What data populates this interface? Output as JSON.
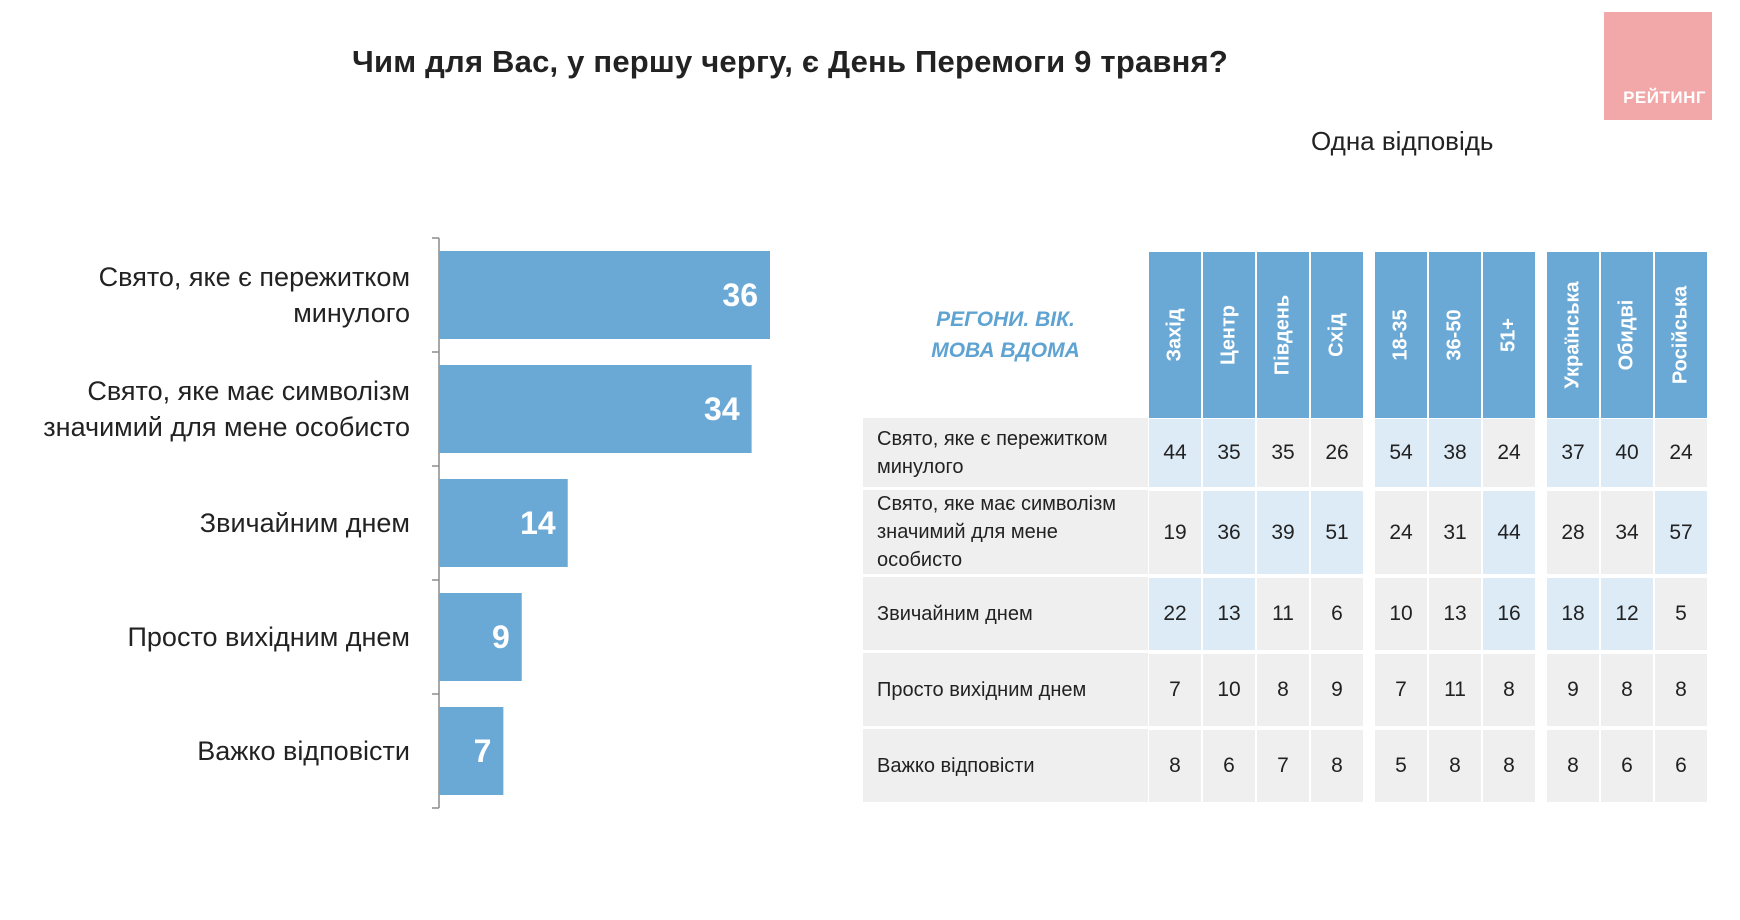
{
  "title": "Чим для Вас, у першу чергу, є День Перемоги 9 травня?",
  "subtitle": "Одна відповідь",
  "logo_text": "РЕЙТИНГ",
  "colors": {
    "bar": "#6aa9d6",
    "header": "#6aa9d6",
    "cell_grey": "#efefef",
    "cell_blue": "#ddebf7",
    "corner_text": "#5ea3d2",
    "logo": "#f2a8a8"
  },
  "chart_data": {
    "type": "bar",
    "orientation": "horizontal",
    "categories": [
      [
        "Свято, яке є пережитком",
        "минулого"
      ],
      [
        "Свято, яке має символізм",
        "значимий для мене особисто"
      ],
      [
        "Звичайним днем"
      ],
      [
        "Просто вихідним днем"
      ],
      [
        "Важко відповісти"
      ]
    ],
    "values": [
      36,
      34,
      14,
      9,
      7
    ],
    "value_labels": [
      "36",
      "34",
      "14",
      "9",
      "7"
    ],
    "xlim": [
      0,
      36
    ],
    "grid": false
  },
  "table": {
    "corner_label_lines": [
      "РЕГОНИ. ВІК.",
      "МОВА ВДОМА"
    ],
    "groups": [
      {
        "columns": [
          "Захід",
          "Центр",
          "Південь",
          "Схід"
        ]
      },
      {
        "columns": [
          "18-35",
          "36-50",
          "51+"
        ]
      },
      {
        "columns": [
          "Українська",
          "Обидві",
          "Російська"
        ]
      }
    ],
    "rows": [
      {
        "label_lines": [
          "Свято, яке є пережитком",
          "минулого"
        ],
        "values": [
          "44",
          "35",
          "35",
          "26",
          "54",
          "38",
          "24",
          "37",
          "40",
          "24"
        ],
        "highlight": [
          true,
          true,
          false,
          false,
          true,
          true,
          false,
          true,
          true,
          false
        ]
      },
      {
        "label_lines": [
          "Свято, яке має символізм",
          "значимий для мене",
          "особисто"
        ],
        "values": [
          "19",
          "36",
          "39",
          "51",
          "24",
          "31",
          "44",
          "28",
          "34",
          "57"
        ],
        "highlight": [
          false,
          true,
          true,
          true,
          false,
          false,
          true,
          false,
          false,
          true
        ]
      },
      {
        "label_lines": [
          "Звичайним днем"
        ],
        "values": [
          "22",
          "13",
          "11",
          "6",
          "10",
          "13",
          "16",
          "18",
          "12",
          "5"
        ],
        "highlight": [
          true,
          true,
          false,
          false,
          false,
          false,
          true,
          true,
          true,
          false
        ]
      },
      {
        "label_lines": [
          "Просто вихідним днем"
        ],
        "values": [
          "7",
          "10",
          "8",
          "9",
          "7",
          "11",
          "8",
          "9",
          "8",
          "8"
        ],
        "highlight": [
          false,
          false,
          false,
          false,
          false,
          false,
          false,
          false,
          false,
          false
        ]
      },
      {
        "label_lines": [
          "Важко відповісти"
        ],
        "values": [
          "8",
          "6",
          "7",
          "8",
          "5",
          "8",
          "8",
          "8",
          "6",
          "6"
        ],
        "highlight": [
          false,
          false,
          false,
          false,
          false,
          false,
          false,
          false,
          false,
          false
        ]
      }
    ]
  }
}
